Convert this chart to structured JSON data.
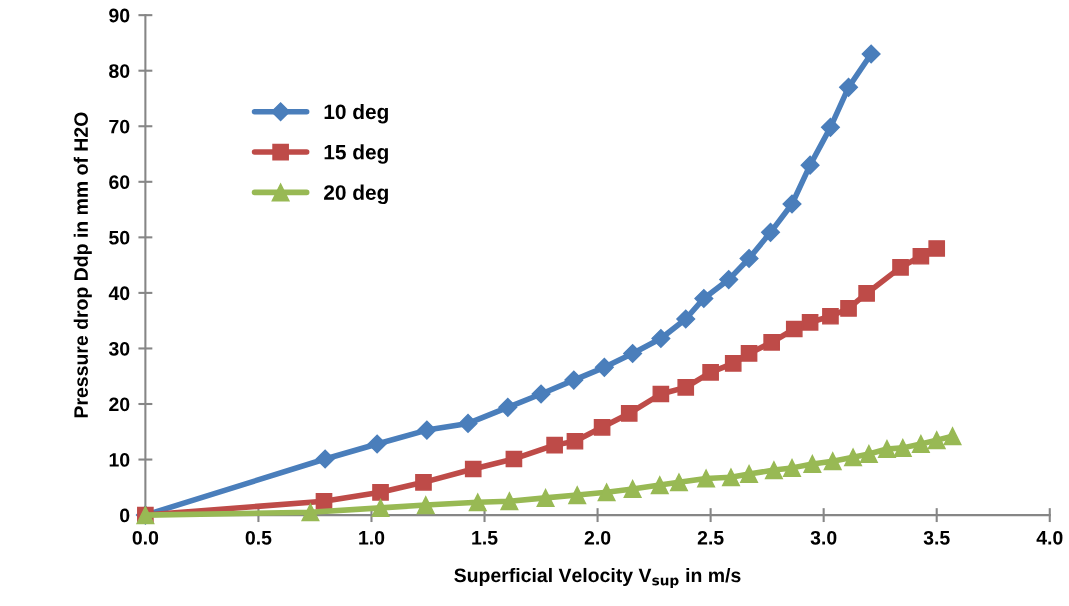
{
  "chart_data": {
    "type": "line",
    "xlabel": "Superficial Velocity V$_{sup}$ in m/s",
    "ylabel": "Pressure drop Ddp in mm of H2O",
    "xlim": [
      0,
      4
    ],
    "xticks": [
      {
        "value": 0,
        "label": "0.0"
      },
      {
        "value": 0.5,
        "label": "0.5"
      },
      {
        "value": 1,
        "label": "1.0"
      },
      {
        "value": 1.5,
        "label": "1.5"
      },
      {
        "value": 2,
        "label": "2.0"
      },
      {
        "value": 2.5,
        "label": "2.5"
      },
      {
        "value": 3,
        "label": "3.0"
      },
      {
        "value": 3.5,
        "label": "3.5"
      },
      {
        "value": 4,
        "label": "4.0"
      }
    ],
    "ylim": [
      0,
      90
    ],
    "yticks": [
      0,
      10,
      20,
      30,
      40,
      50,
      60,
      70,
      80,
      90
    ],
    "grid": false,
    "legend": "top left",
    "series": [
      {
        "name": "10 deg",
        "color": "#4a7ebb",
        "marker": "diamond",
        "x": [
          0,
          0.795,
          1.025,
          1.245,
          1.427,
          1.603,
          1.75,
          1.895,
          2.03,
          2.155,
          2.28,
          2.39,
          2.47,
          2.58,
          2.67,
          2.765,
          2.86,
          2.94,
          3.03,
          3.11,
          3.21
        ],
        "values": [
          0,
          10.1,
          12.8,
          15.3,
          16.5,
          19.4,
          21.8,
          24.3,
          26.6,
          29.1,
          31.8,
          35.3,
          39.0,
          42.4,
          46.2,
          50.9,
          56.0,
          63.0,
          69.8,
          77.0,
          83.0
        ]
      },
      {
        "name": "15 deg",
        "color": "#be4b48",
        "marker": "square",
        "x": [
          0,
          0.79,
          1.04,
          1.23,
          1.45,
          1.63,
          1.81,
          1.9,
          2.02,
          2.14,
          2.28,
          2.39,
          2.5,
          2.6,
          2.67,
          2.77,
          2.87,
          2.94,
          3.03,
          3.11,
          3.19,
          3.34,
          3.43,
          3.5
        ],
        "values": [
          0,
          2.5,
          4.1,
          5.9,
          8.3,
          10.1,
          12.6,
          13.3,
          15.8,
          18.3,
          21.8,
          23.0,
          25.7,
          27.3,
          29.1,
          31.1,
          33.5,
          34.7,
          35.8,
          37.2,
          39.9,
          44.6,
          46.6,
          48.0
        ]
      },
      {
        "name": "20 deg",
        "color": "#98b954",
        "marker": "triangle",
        "x": [
          0,
          0.73,
          1.04,
          1.24,
          1.47,
          1.61,
          1.77,
          1.91,
          2.04,
          2.155,
          2.275,
          2.36,
          2.48,
          2.59,
          2.67,
          2.78,
          2.86,
          2.95,
          3.04,
          3.13,
          3.2,
          3.28,
          3.35,
          3.43,
          3.5,
          3.57
        ],
        "values": [
          0,
          0.5,
          1.3,
          1.8,
          2.3,
          2.5,
          3.1,
          3.6,
          4.1,
          4.7,
          5.4,
          5.9,
          6.6,
          6.8,
          7.4,
          8.1,
          8.5,
          9.2,
          9.7,
          10.4,
          11.0,
          11.9,
          12.1,
          12.8,
          13.5,
          14.2
        ]
      }
    ]
  }
}
